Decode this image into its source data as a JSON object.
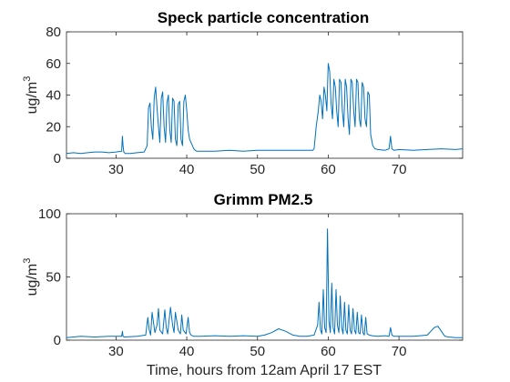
{
  "chart_data": [
    {
      "type": "line",
      "title": "Speck particle concentration",
      "ylabel_main": "ug/m",
      "ylabel_sup": "3",
      "xlabel": "",
      "xlim": [
        23,
        79
      ],
      "ylim": [
        0,
        80
      ],
      "xticks": [
        30,
        40,
        50,
        60,
        70
      ],
      "xtick_labels": [
        "30",
        "40",
        "50",
        "60",
        "70"
      ],
      "yticks": [
        0,
        20,
        40,
        60,
        80
      ],
      "ytick_labels": [
        "0",
        "20",
        "40",
        "60",
        "80"
      ],
      "color": "#0072BD",
      "grid": false,
      "series": [
        {
          "x": [
            23,
            24,
            25,
            26,
            27,
            28,
            29,
            30,
            30.8,
            30.9,
            31.0,
            31.1,
            31.3,
            32,
            33,
            34,
            34.4,
            34.6,
            34.8,
            35.0,
            35.2,
            35.4,
            35.6,
            35.8,
            36.0,
            36.2,
            36.4,
            36.6,
            36.8,
            37.0,
            37.2,
            37.4,
            37.6,
            37.8,
            38.0,
            38.2,
            38.4,
            38.6,
            38.8,
            39.0,
            39.2,
            39.4,
            39.6,
            39.8,
            40.0,
            40.2,
            40.4,
            40.6,
            40.8,
            41.0,
            41.2,
            41.4,
            42,
            44,
            46,
            48,
            50,
            52,
            54,
            56,
            57.5,
            57.8,
            58.0,
            58.3,
            58.6,
            58.8,
            59.0,
            59.2,
            59.4,
            59.6,
            59.8,
            60.0,
            60.2,
            60.4,
            60.6,
            60.8,
            61.0,
            61.2,
            61.4,
            61.6,
            61.8,
            62.0,
            62.2,
            62.4,
            62.6,
            62.8,
            63.0,
            63.2,
            63.4,
            63.6,
            63.8,
            64.0,
            64.2,
            64.4,
            64.6,
            64.8,
            65.0,
            65.2,
            65.4,
            65.6,
            65.8,
            66.0,
            66.3,
            66.6,
            67,
            68,
            68.6,
            68.8,
            69.0,
            69.3,
            70,
            72,
            74,
            76,
            78,
            79
          ],
          "y": [
            3,
            3.5,
            3,
            3.5,
            4,
            4,
            3.5,
            4,
            4.5,
            14,
            8,
            4,
            3,
            3,
            3.5,
            4,
            8,
            32,
            35,
            20,
            12,
            38,
            45,
            32,
            20,
            10,
            38,
            42,
            20,
            10,
            35,
            40,
            18,
            10,
            38,
            36,
            12,
            8,
            34,
            36,
            12,
            8,
            36,
            40,
            30,
            18,
            12,
            10,
            8,
            6,
            5,
            4.5,
            4.5,
            4.5,
            5,
            4.5,
            5,
            5,
            5,
            5,
            5,
            5,
            6,
            20,
            30,
            40,
            36,
            25,
            45,
            40,
            30,
            60,
            55,
            35,
            25,
            50,
            45,
            30,
            20,
            50,
            48,
            30,
            20,
            50,
            45,
            25,
            15,
            50,
            48,
            30,
            20,
            50,
            48,
            25,
            20,
            48,
            45,
            25,
            20,
            42,
            40,
            15,
            8,
            6,
            5.5,
            5,
            6,
            14,
            6,
            5,
            5.5,
            5,
            5.5,
            6,
            5.5,
            6
          ]
        }
      ]
    },
    {
      "type": "line",
      "title": "Grimm PM2.5",
      "ylabel_main": "ug/m",
      "ylabel_sup": "3",
      "xlabel": "Time, hours from 12am April 17 EST",
      "xlim": [
        23,
        79
      ],
      "ylim": [
        0,
        100
      ],
      "xticks": [
        30,
        40,
        50,
        60,
        70
      ],
      "xtick_labels": [
        "30",
        "40",
        "50",
        "60",
        "70"
      ],
      "yticks": [
        0,
        50,
        100
      ],
      "ytick_labels": [
        "0",
        "50",
        "100"
      ],
      "color": "#0072BD",
      "grid": false,
      "series": [
        {
          "x": [
            23,
            25,
            27,
            29,
            30.8,
            30.9,
            31.0,
            31.2,
            33,
            34.2,
            34.5,
            34.7,
            34.9,
            35.1,
            35.5,
            35.8,
            36.0,
            36.2,
            36.6,
            36.9,
            37.1,
            37.3,
            37.7,
            38.0,
            38.2,
            38.4,
            38.8,
            39.1,
            39.3,
            39.5,
            39.9,
            40.2,
            40.4,
            40.6,
            41.0,
            42,
            44,
            46,
            48,
            50,
            51,
            52,
            53,
            54,
            55,
            56,
            57,
            58,
            58.5,
            58.7,
            58.9,
            59.1,
            59.3,
            59.5,
            59.7,
            59.9,
            60.1,
            60.3,
            60.5,
            60.7,
            60.9,
            61.1,
            61.3,
            61.5,
            61.7,
            61.9,
            62.1,
            62.3,
            62.5,
            62.7,
            62.9,
            63.1,
            63.3,
            63.5,
            63.7,
            63.9,
            64.1,
            64.3,
            64.5,
            64.7,
            64.9,
            65.1,
            65.3,
            65.5,
            65.8,
            66.2,
            67,
            68,
            68.6,
            68.8,
            69.0,
            69.3,
            70,
            72,
            73,
            74,
            74.5,
            75.0,
            75.5,
            76.0,
            76.5,
            77,
            78,
            79
          ],
          "y": [
            2,
            3,
            2.5,
            3,
            3,
            7,
            3,
            2.5,
            3,
            4,
            18,
            8,
            4,
            22,
            6,
            12,
            25,
            8,
            5,
            24,
            10,
            5,
            26,
            12,
            6,
            22,
            8,
            5,
            20,
            8,
            5,
            18,
            6,
            4,
            3,
            3,
            3.5,
            3,
            3.5,
            3,
            4,
            6,
            9,
            7,
            4,
            3,
            3,
            4,
            12,
            30,
            8,
            5,
            40,
            10,
            6,
            88,
            15,
            6,
            45,
            10,
            5,
            40,
            12,
            6,
            35,
            10,
            5,
            30,
            8,
            5,
            28,
            8,
            5,
            25,
            8,
            5,
            22,
            6,
            5,
            20,
            6,
            4,
            18,
            5,
            4,
            3.5,
            3,
            3.5,
            3,
            10,
            4,
            3,
            3,
            3,
            3.5,
            4,
            7,
            10,
            11,
            7,
            3,
            2.5,
            2,
            2
          ]
        }
      ]
    }
  ]
}
